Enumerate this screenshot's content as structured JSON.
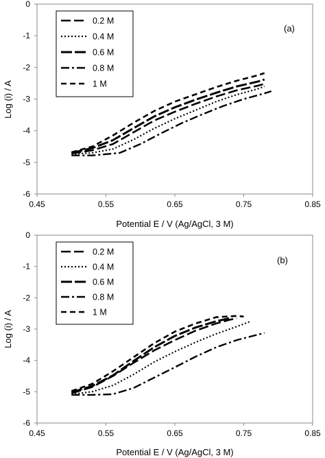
{
  "chart_data": [
    {
      "type": "line",
      "panel_label": "(a)",
      "xlabel": "Potential E / V (Ag/AgCl, 3 M)",
      "ylabel": "Log (i) / A",
      "xlim": [
        0.45,
        0.85
      ],
      "ylim": [
        -6,
        0
      ],
      "xticks": [
        "0.45",
        "0.55",
        "0.65",
        "0.75",
        "0.85"
      ],
      "yticks": [
        "0",
        "-1",
        "-2",
        "-3",
        "-4",
        "-5",
        "-6"
      ],
      "grid": false,
      "legend": "top-left",
      "series": [
        {
          "name": "0.2 M",
          "x": [
            0.5,
            0.53,
            0.56,
            0.59,
            0.62,
            0.65,
            0.68,
            0.71,
            0.74,
            0.77,
            0.78
          ],
          "y": [
            -4.72,
            -4.62,
            -4.42,
            -4.05,
            -3.68,
            -3.4,
            -3.15,
            -2.92,
            -2.72,
            -2.58,
            -2.52
          ]
        },
        {
          "name": "0.4 M",
          "x": [
            0.5,
            0.53,
            0.56,
            0.59,
            0.62,
            0.65,
            0.68,
            0.71,
            0.74,
            0.77,
            0.78
          ],
          "y": [
            -4.74,
            -4.7,
            -4.58,
            -4.28,
            -3.93,
            -3.62,
            -3.35,
            -3.08,
            -2.86,
            -2.68,
            -2.6
          ]
        },
        {
          "name": "0.6 M",
          "x": [
            0.5,
            0.53,
            0.56,
            0.59,
            0.62,
            0.65,
            0.68,
            0.71,
            0.74,
            0.77,
            0.78
          ],
          "y": [
            -4.7,
            -4.55,
            -4.3,
            -3.92,
            -3.55,
            -3.26,
            -3.02,
            -2.8,
            -2.6,
            -2.45,
            -2.38
          ]
        },
        {
          "name": "0.8 M",
          "x": [
            0.5,
            0.53,
            0.57,
            0.6,
            0.63,
            0.66,
            0.69,
            0.72,
            0.75,
            0.78,
            0.79
          ],
          "y": [
            -4.78,
            -4.78,
            -4.7,
            -4.42,
            -4.08,
            -3.76,
            -3.48,
            -3.22,
            -3.0,
            -2.82,
            -2.75
          ]
        },
        {
          "name": "1 M",
          "x": [
            0.5,
            0.53,
            0.56,
            0.59,
            0.62,
            0.65,
            0.68,
            0.71,
            0.74,
            0.77,
            0.78
          ],
          "y": [
            -4.68,
            -4.5,
            -4.15,
            -3.75,
            -3.38,
            -3.08,
            -2.85,
            -2.62,
            -2.42,
            -2.25,
            -2.18
          ]
        }
      ]
    },
    {
      "type": "line",
      "panel_label": "(b)",
      "xlabel": "Potential E / V (Ag/AgCl, 3 M)",
      "ylabel": "Log (i) / A",
      "xlim": [
        0.45,
        0.85
      ],
      "ylim": [
        -6,
        0
      ],
      "xticks": [
        "0.45",
        "0.55",
        "0.65",
        "0.75",
        "0.85"
      ],
      "yticks": [
        "0",
        "-1",
        "-2",
        "-3",
        "-4",
        "-5",
        "-6"
      ],
      "grid": false,
      "legend": "top-left",
      "series": [
        {
          "name": "0.2 M",
          "x": [
            0.5,
            0.53,
            0.56,
            0.59,
            0.62,
            0.65,
            0.68,
            0.71,
            0.73,
            0.74
          ],
          "y": [
            -5.05,
            -4.85,
            -4.5,
            -4.08,
            -3.68,
            -3.35,
            -3.05,
            -2.82,
            -2.7,
            -2.65
          ]
        },
        {
          "name": "0.4 M",
          "x": [
            0.5,
            0.53,
            0.56,
            0.59,
            0.62,
            0.65,
            0.68,
            0.71,
            0.74,
            0.76
          ],
          "y": [
            -5.08,
            -5.0,
            -4.8,
            -4.45,
            -4.05,
            -3.72,
            -3.42,
            -3.15,
            -2.92,
            -2.75
          ]
        },
        {
          "name": "0.6 M",
          "x": [
            0.5,
            0.53,
            0.56,
            0.59,
            0.62,
            0.65,
            0.68,
            0.71,
            0.73
          ],
          "y": [
            -5.02,
            -4.82,
            -4.48,
            -4.02,
            -3.58,
            -3.22,
            -2.95,
            -2.75,
            -2.65
          ]
        },
        {
          "name": "0.8 M",
          "x": [
            0.5,
            0.53,
            0.56,
            0.59,
            0.62,
            0.65,
            0.68,
            0.71,
            0.74,
            0.77,
            0.78
          ],
          "y": [
            -5.1,
            -5.1,
            -5.08,
            -4.88,
            -4.55,
            -4.22,
            -3.88,
            -3.58,
            -3.35,
            -3.18,
            -3.12
          ]
        },
        {
          "name": "1 M",
          "x": [
            0.5,
            0.53,
            0.56,
            0.59,
            0.62,
            0.65,
            0.68,
            0.71,
            0.74,
            0.75
          ],
          "y": [
            -4.98,
            -4.75,
            -4.35,
            -3.9,
            -3.45,
            -3.08,
            -2.82,
            -2.62,
            -2.58,
            -2.6
          ]
        }
      ]
    }
  ]
}
